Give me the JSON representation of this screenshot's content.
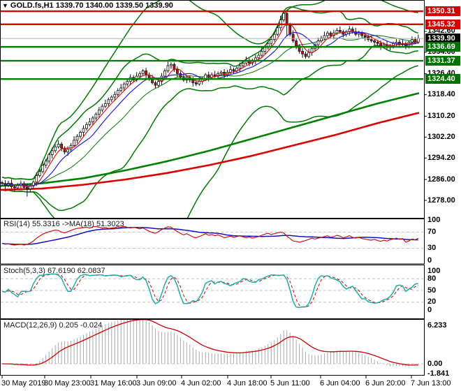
{
  "window": {
    "symbol_marker": "▼",
    "title": "GOLD.fs,H1  1339.70 1340.00 1339.50 1339.90"
  },
  "chart_data": {
    "type": "candlestick",
    "symbol": "GOLD.fs",
    "timeframe": "H1",
    "quote": {
      "open": "1339.70",
      "high": "1340.00",
      "low": "1339.50",
      "last": "1339.90"
    },
    "x_axis": {
      "labels": [
        "30 May 2019",
        "30 May 23:00",
        "31 May 16:00",
        "3 Jun 09:00",
        "4 Jun 02:00",
        "4 Jun 18:00",
        "5 Jun 11:00",
        "6 Jun 04:00",
        "6 Jun 20:00",
        "7 Jun 13:00"
      ],
      "lefts": [
        2,
        63,
        129,
        195,
        259,
        325,
        387,
        458,
        523,
        588
      ]
    },
    "y_axis": {
      "ticks": [
        1342.6,
        1334.6,
        1326.4,
        1318.4,
        1310.2,
        1302.2,
        1294.2,
        1286.0,
        1278.0
      ],
      "range": [
        1271.5,
        1354.8
      ]
    },
    "levels": [
      {
        "price": 1350.31,
        "label": "1350.31",
        "kind": "resistance",
        "color": "#d40000"
      },
      {
        "price": 1345.32,
        "label": "1345.32",
        "kind": "resistance",
        "color": "#d40000"
      },
      {
        "price": 1339.9,
        "label": "1339.90",
        "kind": "current",
        "color": "#000000"
      },
      {
        "price": 1336.69,
        "label": "1336.69",
        "kind": "support",
        "color": "#007000"
      },
      {
        "price": 1331.37,
        "label": "1331.37",
        "kind": "support",
        "color": "#007000"
      },
      {
        "price": 1324.4,
        "label": "1324.40",
        "kind": "support",
        "color": "#007000"
      }
    ],
    "candles": {
      "closes": [
        1284.5,
        1283.8,
        1284.6,
        1283.2,
        1282.8,
        1283.9,
        1284.4,
        1283.0,
        1282.4,
        1283.5,
        1285.0,
        1287.5,
        1289.0,
        1291.5,
        1293.0,
        1295.5,
        1297.0,
        1298.5,
        1299.5,
        1298.0,
        1296.5,
        1297.5,
        1299.0,
        1301.0,
        1302.5,
        1304.0,
        1305.5,
        1307.0,
        1308.0,
        1309.5,
        1311.0,
        1312.5,
        1314.0,
        1315.0,
        1316.5,
        1317.5,
        1318.5,
        1320.0,
        1321.0,
        1322.5,
        1323.5,
        1325.0,
        1324.0,
        1325.5,
        1326.5,
        1327.5,
        1326.0,
        1324.5,
        1323.0,
        1322.0,
        1323.5,
        1325.5,
        1327.5,
        1329.5,
        1330.0,
        1328.0,
        1326.5,
        1325.0,
        1324.0,
        1325.0,
        1324.0,
        1323.0,
        1322.5,
        1323.5,
        1324.5,
        1326.0,
        1325.0,
        1326.0,
        1325.5,
        1326.5,
        1327.0,
        1326.0,
        1327.0,
        1328.0,
        1327.5,
        1328.5,
        1329.5,
        1330.5,
        1331.5,
        1330.5,
        1331.5,
        1332.5,
        1333.5,
        1335.0,
        1336.5,
        1338.0,
        1339.5,
        1341.5,
        1344.0,
        1347.0,
        1349.5,
        1345.0,
        1341.5,
        1339.0,
        1337.0,
        1335.0,
        1334.0,
        1333.0,
        1334.5,
        1336.0,
        1337.5,
        1339.0,
        1340.0,
        1341.0,
        1342.0,
        1341.0,
        1342.0,
        1343.0,
        1342.5,
        1341.5,
        1342.5,
        1343.5,
        1342.5,
        1341.5,
        1342.0,
        1341.0,
        1340.5,
        1339.5,
        1339.0,
        1338.5,
        1338.0,
        1337.0,
        1337.5,
        1336.5,
        1337.0,
        1338.0,
        1338.5,
        1337.5,
        1338.0,
        1337.0,
        1338.5,
        1339.5,
        1338.5,
        1339.9
      ],
      "wick_pattern": [
        0.7,
        1.2,
        0.9,
        1.5,
        0.8
      ],
      "high_overrides": {
        "90": 1350.3,
        "89": 1348.6
      },
      "low_overrides": {
        "8": 1279.5,
        "91": 1340.8
      }
    },
    "overlays": {
      "bollinger": [
        {
          "period": 20,
          "k": 2.4
        },
        {
          "period": 50,
          "k": 3.2
        }
      ],
      "fast_ma": [
        {
          "period": 5,
          "color": "#e01010"
        },
        {
          "period": 10,
          "color": "#2020d0"
        }
      ],
      "long_ma_green": [
        [
          0,
          1283.5
        ],
        [
          60,
          1284.5
        ],
        [
          120,
          1286.5
        ],
        [
          180,
          1289.5
        ],
        [
          240,
          1293.0
        ],
        [
          300,
          1297.0
        ],
        [
          360,
          1301.5
        ],
        [
          420,
          1306.0
        ],
        [
          480,
          1310.5
        ],
        [
          540,
          1315.0
        ],
        [
          600,
          1319.0
        ]
      ],
      "long_ma_red": [
        [
          0,
          1282.0
        ],
        [
          60,
          1282.5
        ],
        [
          120,
          1284.0
        ],
        [
          180,
          1286.0
        ],
        [
          240,
          1288.5
        ],
        [
          300,
          1291.5
        ],
        [
          360,
          1295.0
        ],
        [
          420,
          1299.0
        ],
        [
          480,
          1303.0
        ],
        [
          540,
          1307.5
        ],
        [
          600,
          1311.5
        ]
      ]
    },
    "indicators": {
      "rsi": {
        "label": "RSI(14) 55.3316  ->MA(18) 51.3023",
        "period": 14,
        "ma_period": 18,
        "axis_ticks": [
          100,
          70,
          30,
          0
        ],
        "dashed_levels": [
          70,
          30
        ],
        "values": [
          42,
          40,
          41,
          39,
          38,
          39,
          40,
          38,
          40,
          43,
          48,
          55,
          60,
          65,
          68,
          71,
          73,
          75,
          74,
          70,
          68,
          71,
          74,
          77,
          79,
          80,
          81,
          82,
          80,
          83,
          84,
          82,
          80,
          81,
          79,
          80,
          81,
          83,
          82,
          84,
          82,
          80,
          82,
          80,
          78,
          80,
          76,
          72,
          69,
          67,
          71,
          76,
          80,
          83,
          82,
          76,
          71,
          67,
          63,
          66,
          62,
          58,
          56,
          59,
          62,
          66,
          62,
          64,
          61,
          63,
          60,
          56,
          58,
          60,
          57,
          59,
          61,
          58,
          56,
          58,
          55,
          57,
          59,
          62,
          65,
          67,
          64,
          66,
          68,
          70,
          68,
          60,
          54,
          48,
          47,
          45,
          47,
          49,
          52,
          55,
          53,
          55,
          57,
          59,
          61,
          57,
          59,
          62,
          60,
          56,
          58,
          61,
          57,
          55,
          57,
          54,
          53,
          51,
          50,
          52,
          49,
          47,
          50,
          48,
          51,
          53,
          55,
          52,
          54,
          45,
          48,
          53,
          51,
          55
        ]
      },
      "stoch": {
        "label": "Stoch(5,3,3) 67.6190 62.0837",
        "k_period": 5,
        "slowing": 3,
        "d_period": 3,
        "axis_ticks": [
          100,
          80,
          50,
          20,
          0
        ],
        "dashed_levels": [
          80,
          50,
          20
        ]
      },
      "macd": {
        "label": "MACD(12,26,9) 0.205 -0.024",
        "fast": 12,
        "slow": 26,
        "signal": 9,
        "axis_ticks": [
          "6.233",
          "0.00",
          "-1.841"
        ],
        "scale_max": 6.233,
        "scale_min": -1.841
      }
    },
    "colors": {
      "bull_candle": "#ffffff",
      "bear_candle": "#b81414",
      "candle_outline": "#101010",
      "band_green": "#007800",
      "long_green": "#008000",
      "long_red": "#dd0000",
      "resistance": "#dd0000",
      "support": "#008000",
      "current_price_line": "#b0b0b0",
      "rsi_line": "#d01010",
      "rsi_ma": "#1010c0",
      "stoch_k": "#20aea6",
      "stoch_d": "#cc0000",
      "macd_hist": "#a8a8a8",
      "macd_signal": "#cc0000",
      "panel_level_dash": "#c4c4c4",
      "border": "#000000"
    }
  }
}
